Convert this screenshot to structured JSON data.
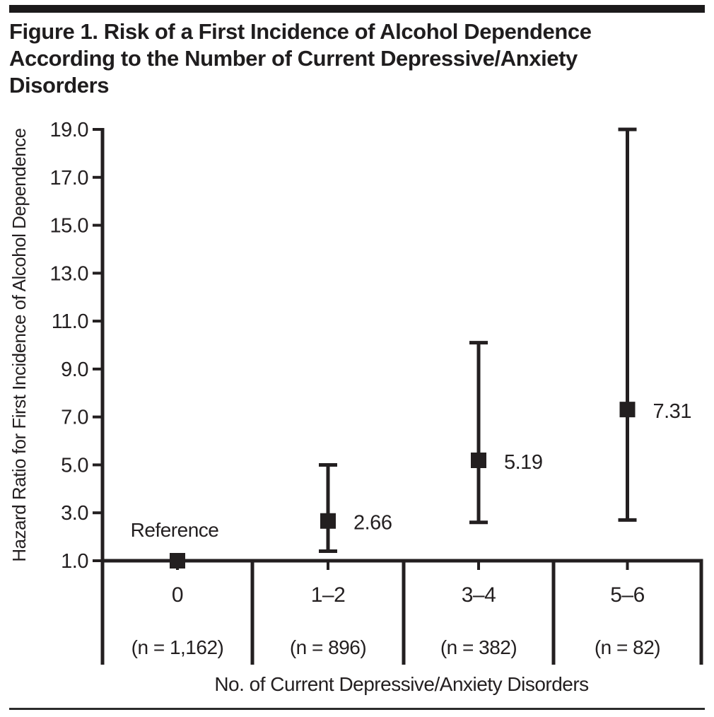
{
  "colors": {
    "ink": "#231f20",
    "background": "#ffffff"
  },
  "figure": {
    "title_lines": [
      "Figure 1. Risk of a First Incidence of Alcohol Dependence",
      "According to the Number of Current Depressive/Anxiety",
      "Disorders"
    ]
  },
  "chart_data": {
    "type": "scatter",
    "subtype": "point-estimates-with-error-bars",
    "title": "Figure 1. Risk of a First Incidence of Alcohol Dependence According to the Number of Current Depressive/Anxiety Disorders",
    "xlabel": "No. of Current Depressive/Anxiety Disorders",
    "ylabel": "Hazard Ratio for First Incidence of Alcohol Dependence",
    "ylim": [
      1.0,
      19.0
    ],
    "ytick_labels": [
      "1.0",
      "3.0",
      "5.0",
      "7.0",
      "9.0",
      "11.0",
      "13.0",
      "15.0",
      "17.0",
      "19.0"
    ],
    "grid": false,
    "legend": "none",
    "marker": "filled-square",
    "categories": [
      "0",
      "1–2",
      "3–4",
      "5–6"
    ],
    "points": [
      {
        "category": "0",
        "n_label": "(n = 1,162)",
        "n": 1162,
        "hazard_ratio": 1.0,
        "point_label": "Reference",
        "ci_low": null,
        "ci_high": null
      },
      {
        "category": "1–2",
        "n_label": "(n = 896)",
        "n": 896,
        "hazard_ratio": 2.66,
        "point_label": "2.66",
        "ci_low": 1.4,
        "ci_high": 5.0
      },
      {
        "category": "3–4",
        "n_label": "(n = 382)",
        "n": 382,
        "hazard_ratio": 5.19,
        "point_label": "5.19",
        "ci_low": 2.6,
        "ci_high": 10.1
      },
      {
        "category": "5–6",
        "n_label": "(n = 82)",
        "n": 82,
        "hazard_ratio": 7.31,
        "point_label": "7.31",
        "ci_low": 2.7,
        "ci_high": 19.0
      }
    ]
  }
}
